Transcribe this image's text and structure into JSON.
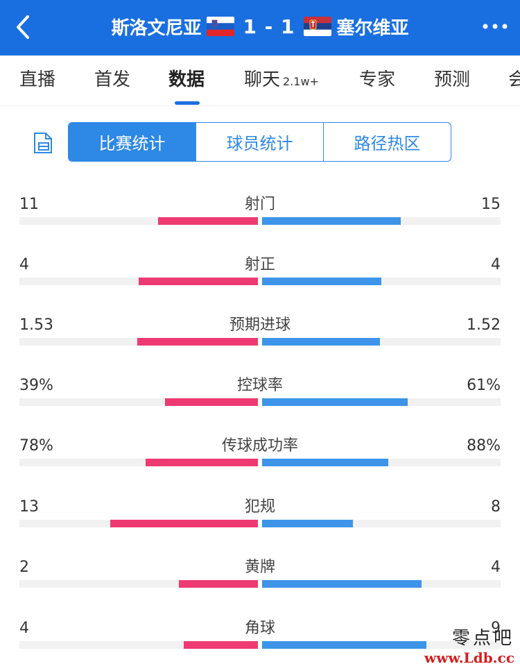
{
  "header": {
    "home_team": "斯洛文尼亚",
    "score": "1 - 1",
    "away_team": "塞尔维亚"
  },
  "tabs": [
    {
      "label": "直播"
    },
    {
      "label": "首发"
    },
    {
      "label": "数据",
      "active": true
    },
    {
      "label": "聊天",
      "badge": "2.1w+"
    },
    {
      "label": "专家"
    },
    {
      "label": "预测"
    },
    {
      "label": "会"
    }
  ],
  "segments": [
    {
      "label": "比赛统计",
      "active": true
    },
    {
      "label": "球员统计"
    },
    {
      "label": "路径热区"
    }
  ],
  "stats": [
    {
      "label": "射门",
      "left": "11",
      "right": "15",
      "left_fraction": 0.42,
      "right_fraction": 0.58
    },
    {
      "label": "射正",
      "left": "4",
      "right": "4",
      "left_fraction": 0.5,
      "right_fraction": 0.5
    },
    {
      "label": "预期进球",
      "left": "1.53",
      "right": "1.52",
      "left_fraction": 0.505,
      "right_fraction": 0.495
    },
    {
      "label": "控球率",
      "left": "39%",
      "right": "61%",
      "left_fraction": 0.39,
      "right_fraction": 0.61
    },
    {
      "label": "传球成功率",
      "left": "78%",
      "right": "88%",
      "left_fraction": 0.47,
      "right_fraction": 0.53
    },
    {
      "label": "犯规",
      "left": "13",
      "right": "8",
      "left_fraction": 0.62,
      "right_fraction": 0.38
    },
    {
      "label": "黄牌",
      "left": "2",
      "right": "4",
      "left_fraction": 0.33,
      "right_fraction": 0.67
    },
    {
      "label": "角球",
      "left": "4",
      "right": "9",
      "left_fraction": 0.31,
      "right_fraction": 0.69
    }
  ],
  "watermark": {
    "line1": "零点吧",
    "line2": "www.Ldb.cc"
  },
  "colors": {
    "header_bg": "#1a6fe0",
    "home_bar": "#ee3a72",
    "away_bar": "#3d94e8"
  }
}
